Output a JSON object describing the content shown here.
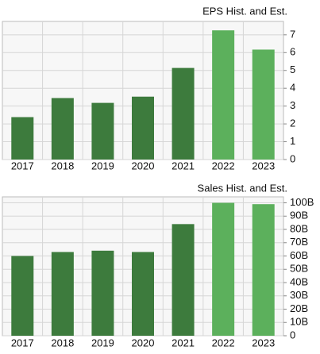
{
  "chart_data": [
    {
      "type": "bar",
      "title": "EPS Hist. and Est.",
      "categories": [
        "2017",
        "2018",
        "2019",
        "2020",
        "2021",
        "2022",
        "2023"
      ],
      "values": [
        2.38,
        3.45,
        3.18,
        3.53,
        5.14,
        7.25,
        6.17
      ],
      "colors": [
        "#3d7b3d",
        "#3d7b3d",
        "#3d7b3d",
        "#3d7b3d",
        "#3d7b3d",
        "#5cb05c",
        "#5cb05c"
      ],
      "ylim": [
        0,
        7.75
      ],
      "yticks": [
        0,
        1,
        2,
        3,
        4,
        5,
        6,
        7
      ],
      "grid": true
    },
    {
      "type": "bar",
      "title": "Sales Hist. and Est.",
      "categories": [
        "2017",
        "2018",
        "2019",
        "2020",
        "2021",
        "2022",
        "2023"
      ],
      "values": [
        60,
        63,
        64,
        63,
        84,
        100,
        99
      ],
      "colors": [
        "#3d7b3d",
        "#3d7b3d",
        "#3d7b3d",
        "#3d7b3d",
        "#3d7b3d",
        "#5cb05c",
        "#5cb05c"
      ],
      "ylim": [
        0,
        104.5
      ],
      "yticks": [
        {
          "value": 0,
          "label": "0"
        },
        {
          "value": 10,
          "label": "10B"
        },
        {
          "value": 20,
          "label": "20B"
        },
        {
          "value": 30,
          "label": "30B"
        },
        {
          "value": 40,
          "label": "40B"
        },
        {
          "value": 50,
          "label": "50B"
        },
        {
          "value": 60,
          "label": "60B"
        },
        {
          "value": 70,
          "label": "70B"
        },
        {
          "value": 80,
          "label": "80B"
        },
        {
          "value": 90,
          "label": "90B"
        },
        {
          "value": 100,
          "label": "100B"
        }
      ],
      "grid": true
    }
  ]
}
